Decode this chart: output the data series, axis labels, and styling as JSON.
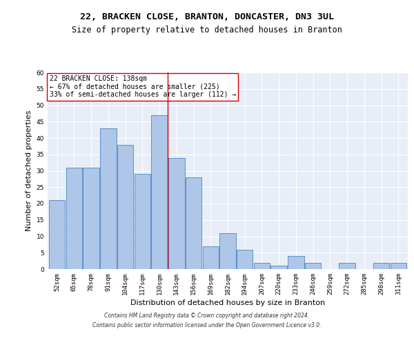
{
  "title_line1": "22, BRACKEN CLOSE, BRANTON, DONCASTER, DN3 3UL",
  "title_line2": "Size of property relative to detached houses in Branton",
  "xlabel": "Distribution of detached houses by size in Branton",
  "ylabel": "Number of detached properties",
  "categories": [
    "52sqm",
    "65sqm",
    "78sqm",
    "91sqm",
    "104sqm",
    "117sqm",
    "130sqm",
    "143sqm",
    "156sqm",
    "169sqm",
    "182sqm",
    "194sqm",
    "207sqm",
    "220sqm",
    "233sqm",
    "246sqm",
    "259sqm",
    "272sqm",
    "285sqm",
    "298sqm",
    "311sqm"
  ],
  "values": [
    21,
    31,
    31,
    43,
    38,
    29,
    47,
    34,
    28,
    7,
    11,
    6,
    2,
    1,
    4,
    2,
    0,
    2,
    0,
    2,
    2
  ],
  "bar_color": "#aec6e8",
  "bar_edge_color": "#5b8fc9",
  "background_color": "#e8eef7",
  "ylim": [
    0,
    60
  ],
  "yticks": [
    0,
    5,
    10,
    15,
    20,
    25,
    30,
    35,
    40,
    45,
    50,
    55,
    60
  ],
  "vline_x": 6.5,
  "vline_color": "#cc0000",
  "annotation_text": "22 BRACKEN CLOSE: 138sqm\n← 67% of detached houses are smaller (225)\n33% of semi-detached houses are larger (112) →",
  "annotation_box_color": "#ffffff",
  "annotation_box_edge": "#cc0000",
  "footer_line1": "Contains HM Land Registry data © Crown copyright and database right 2024.",
  "footer_line2": "Contains public sector information licensed under the Open Government Licence v3.0.",
  "title_fontsize": 9.5,
  "subtitle_fontsize": 8.5,
  "tick_fontsize": 6.5,
  "xlabel_fontsize": 8,
  "ylabel_fontsize": 8,
  "annotation_fontsize": 7,
  "footer_fontsize": 5.5
}
